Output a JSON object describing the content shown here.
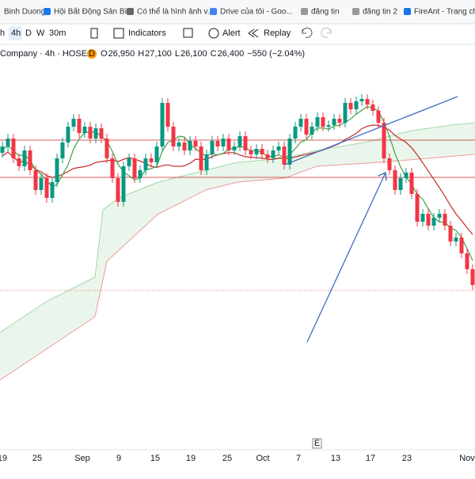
{
  "bookmarks": [
    "Binh Duong",
    "Hội Bất Động Sản Bì...",
    "Có thể là hình ảnh v...",
    "Drive của tôi - Goo...",
    "đăng tin",
    "đăng tin 2",
    "FireAnt - Trang chủ"
  ],
  "toolbar": {
    "intervals": [
      "h",
      "4h",
      "D",
      "W",
      "30m"
    ],
    "indicators": "Indicators",
    "alert": "Alert",
    "replay": "Replay"
  },
  "legend": {
    "symbol": "Company · 4h · HOSE",
    "badge": "D",
    "ohlc": [
      {
        "label": "O",
        "value": "26,950"
      },
      {
        "label": "H",
        "value": "27,100"
      },
      {
        "label": "L",
        "value": "26,100"
      },
      {
        "label": "C",
        "value": "26,400"
      }
    ],
    "change": "−550 (−2.04%)"
  },
  "x_axis_labels": [
    "19",
    "25",
    "Sep",
    "9",
    "15",
    "19",
    "25",
    "Oct",
    "7",
    "13",
    "17",
    "23",
    "Nov"
  ],
  "event_marker": "E"
}
